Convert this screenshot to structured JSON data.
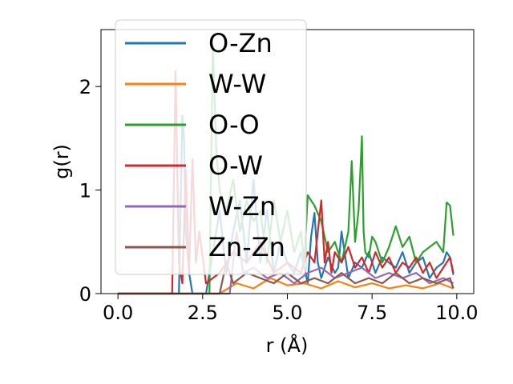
{
  "chart_data": {
    "type": "line",
    "xlabel": "r (Å)",
    "ylabel": "g(r)",
    "xlim": [
      -0.5,
      10.5
    ],
    "ylim": [
      0,
      2.55
    ],
    "xticks": [
      0.0,
      2.5,
      5.0,
      7.5,
      10.0
    ],
    "xtick_labels": [
      "0.0",
      "2.5",
      "5.0",
      "7.5",
      "10.0"
    ],
    "yticks": [
      0,
      1,
      2
    ],
    "ytick_labels": [
      "0",
      "1",
      "2"
    ],
    "grid": false,
    "legend_position": "upper-left",
    "series": [
      {
        "name": "O-Zn",
        "color": "#1f77b4",
        "x": [
          0,
          1.0,
          1.8,
          1.9,
          1.95,
          2.0,
          2.1,
          2.2,
          2.6,
          3.0,
          3.2,
          3.4,
          3.6,
          3.8,
          4.0,
          4.2,
          4.4,
          4.6,
          4.8,
          5.0,
          5.2,
          5.4,
          5.6,
          5.7,
          5.8,
          5.9,
          6.0,
          6.2,
          6.4,
          6.5,
          6.6,
          6.8,
          7.0,
          7.2,
          7.4,
          7.6,
          7.8,
          8.0,
          8.2,
          8.4,
          8.6,
          8.8,
          9.0,
          9.2,
          9.4,
          9.6,
          9.7,
          9.8,
          9.9
        ],
        "y": [
          0,
          0,
          0,
          1.72,
          1.5,
          0.6,
          0.2,
          0,
          0,
          0.8,
          0.2,
          0.6,
          0.9,
          0.3,
          1.1,
          0.3,
          0.8,
          0.2,
          0.5,
          0.3,
          0.2,
          0.4,
          0.1,
          0.55,
          0.78,
          0.3,
          0.15,
          0.35,
          0.2,
          0.25,
          0.6,
          0.15,
          0.3,
          0.25,
          0.4,
          0.2,
          0.35,
          0.3,
          0.25,
          0.4,
          0.2,
          0.3,
          0.35,
          0.15,
          0.25,
          0.3,
          0.4,
          0.35,
          0.18
        ]
      },
      {
        "name": "W-W",
        "color": "#ff7f0e",
        "x": [
          0,
          3.0,
          3.5,
          4.0,
          4.5,
          5.0,
          5.5,
          6.0,
          6.5,
          7.0,
          7.5,
          8.0,
          8.5,
          9.0,
          9.5,
          9.9
        ],
        "y": [
          0,
          0,
          0.1,
          0.05,
          0.15,
          0.08,
          0.1,
          0.05,
          0.12,
          0.06,
          0.1,
          0.05,
          0.08,
          0.05,
          0.1,
          0.05
        ]
      },
      {
        "name": "O-O",
        "color": "#2ca02c",
        "x": [
          0,
          2.5,
          2.7,
          2.8,
          2.9,
          3.0,
          3.2,
          3.4,
          3.6,
          3.8,
          4.0,
          4.2,
          4.4,
          4.6,
          4.8,
          5.0,
          5.2,
          5.4,
          5.5,
          5.6,
          5.8,
          6.0,
          6.2,
          6.4,
          6.6,
          6.8,
          6.9,
          7.0,
          7.1,
          7.2,
          7.25,
          7.3,
          7.4,
          7.5,
          7.6,
          7.8,
          8.0,
          8.2,
          8.4,
          8.6,
          8.8,
          9.0,
          9.2,
          9.4,
          9.6,
          9.7,
          9.8,
          9.9
        ],
        "y": [
          0,
          0,
          0,
          2.4,
          1.4,
          1.0,
          0.8,
          1.1,
          0.6,
          0.9,
          0.7,
          0.8,
          0.3,
          0.9,
          0.5,
          0.8,
          0.4,
          0.6,
          0.3,
          0.95,
          0.85,
          0.7,
          0.4,
          0.5,
          0.3,
          0.6,
          1.28,
          0.5,
          0.8,
          1.52,
          0.6,
          0.4,
          0.35,
          0.55,
          0.5,
          0.3,
          0.45,
          0.65,
          0.45,
          0.55,
          0.3,
          0.4,
          0.45,
          0.5,
          0.4,
          0.88,
          0.85,
          0.56
        ]
      },
      {
        "name": "O-W",
        "color": "#d62728",
        "x": [
          0,
          1.6,
          1.7,
          1.8,
          1.9,
          2.0,
          2.1,
          2.2,
          2.3,
          2.4,
          2.6,
          3.0,
          3.4,
          3.8,
          4.2,
          4.6,
          5.0,
          5.4,
          5.6,
          5.8,
          6.0,
          6.1,
          6.2,
          6.3,
          6.4,
          6.6,
          6.8,
          7.0,
          7.2,
          7.4,
          7.6,
          7.8,
          8.0,
          8.2,
          8.4,
          8.6,
          8.8,
          9.0,
          9.2,
          9.4,
          9.6,
          9.8,
          9.9
        ],
        "y": [
          0,
          0,
          2.15,
          0.3,
          0.1,
          1.2,
          0.2,
          1.3,
          0.3,
          0.6,
          0.1,
          0.2,
          0.4,
          0.3,
          0.5,
          0.2,
          0.3,
          0.2,
          0.4,
          0.3,
          0.9,
          0.3,
          0.5,
          0.2,
          0.4,
          0.3,
          0.45,
          0.25,
          0.35,
          0.2,
          0.4,
          0.25,
          0.35,
          0.2,
          0.3,
          0.25,
          0.35,
          0.2,
          0.3,
          0.15,
          0.25,
          0.35,
          0.2
        ]
      },
      {
        "name": "W-Zn",
        "color": "#9467bd",
        "x": [
          0,
          3.3,
          3.5,
          3.7,
          4.0,
          4.4,
          4.8,
          5.2,
          5.6,
          6.0,
          6.4,
          6.8,
          7.2,
          7.6,
          8.0,
          8.4,
          8.8,
          9.2,
          9.6,
          9.9
        ],
        "y": [
          0,
          0,
          0.6,
          0.2,
          0.25,
          0.15,
          0.2,
          0.1,
          0.2,
          0.25,
          0.15,
          0.2,
          0.25,
          0.15,
          0.2,
          0.15,
          0.2,
          0.1,
          0.15,
          0.1
        ]
      },
      {
        "name": "Zn-Zn",
        "color": "#8c564b",
        "x": [
          0,
          3.0,
          3.2,
          3.4,
          3.8,
          4.2,
          4.6,
          5.0,
          5.4,
          5.8,
          6.2,
          6.6,
          7.0,
          7.4,
          7.8,
          8.2,
          8.6,
          9.0,
          9.4,
          9.8,
          9.9
        ],
        "y": [
          0,
          0,
          0.3,
          0.1,
          0.2,
          0.15,
          0.1,
          0.2,
          0.1,
          0.15,
          0.1,
          0.2,
          0.1,
          0.15,
          0.1,
          0.2,
          0.1,
          0.15,
          0.1,
          0.15,
          0.05
        ]
      }
    ]
  }
}
